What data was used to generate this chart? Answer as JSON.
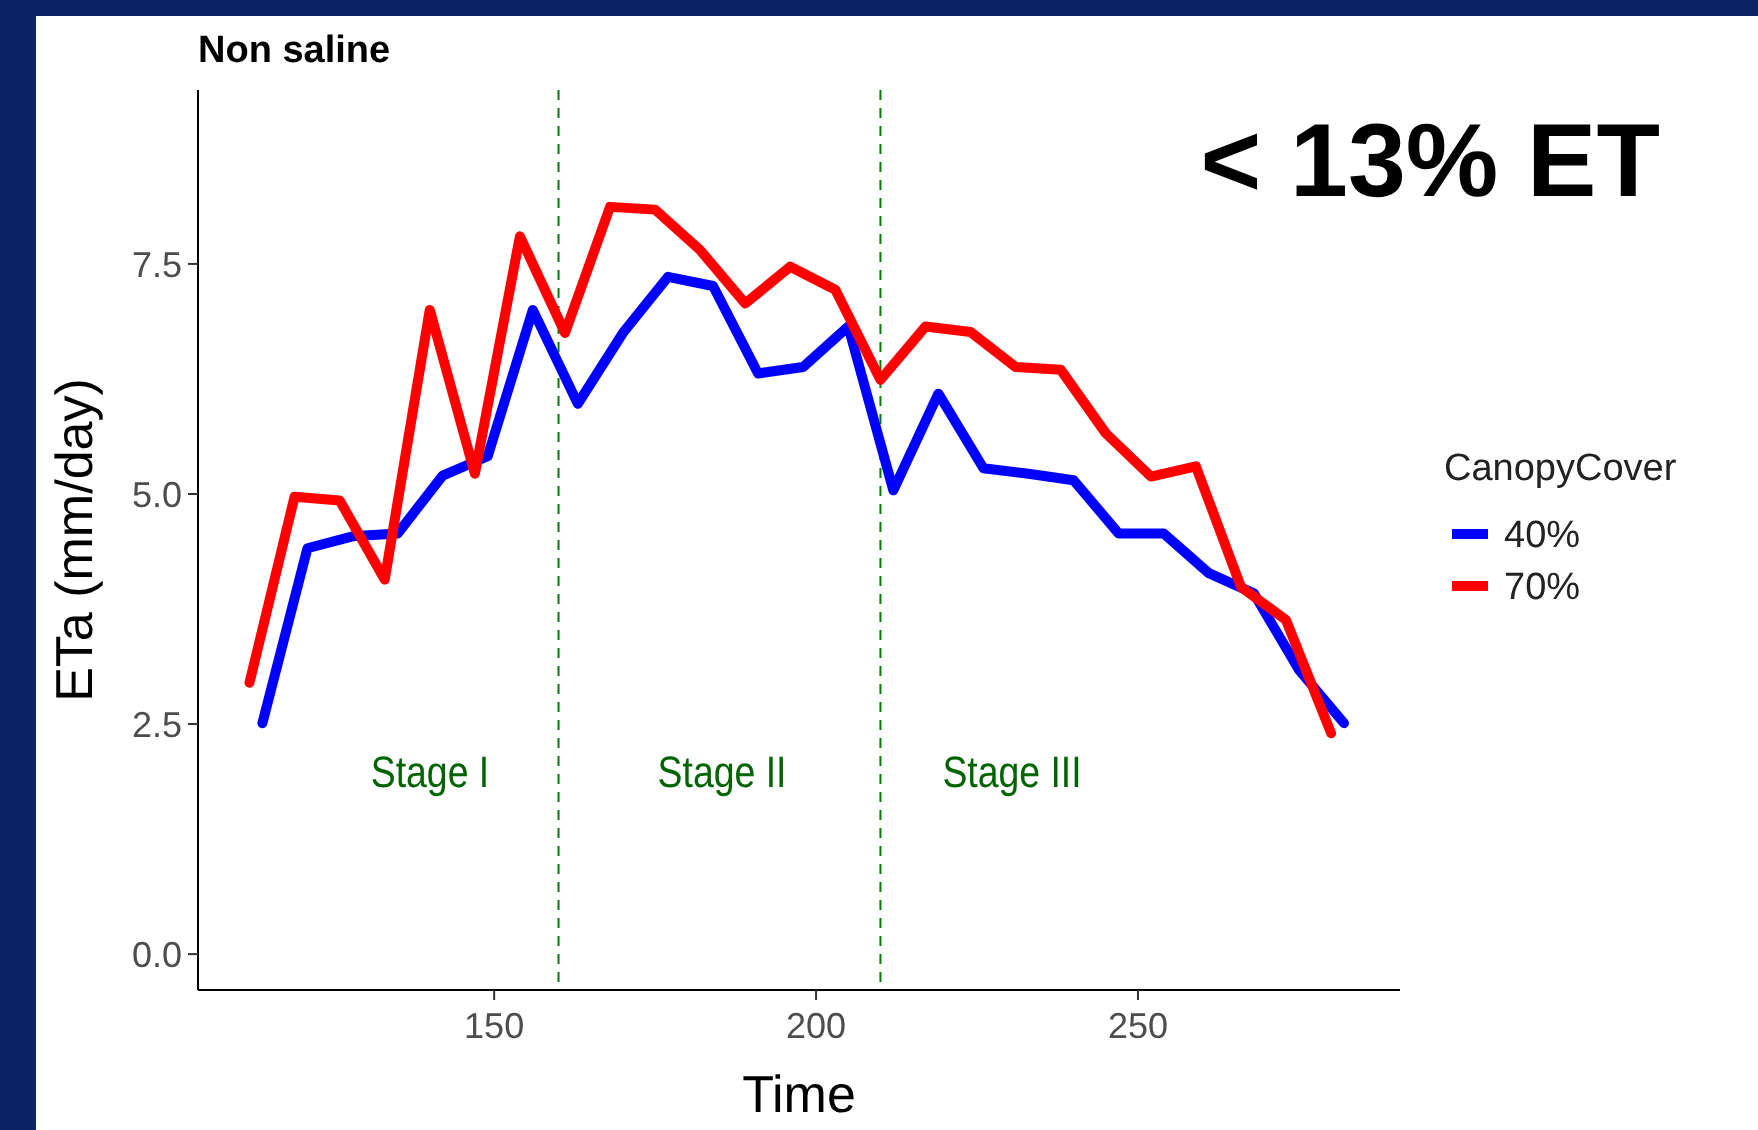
{
  "chart_data": {
    "type": "line",
    "title": "Non saline",
    "xlabel": "Time",
    "ylabel": "ETa (mm/day)",
    "legend_title": "CanopyCover",
    "legend": "right",
    "grid": false,
    "line_style": "solid",
    "marker": "none",
    "xlim": [
      104,
      290.7
    ],
    "xticks": [
      150,
      200,
      250
    ],
    "ylim": [
      -0.39,
      9.39
    ],
    "yticks": [
      {
        "value": 0,
        "label": "0.0"
      },
      {
        "value": 2.5,
        "label": "2.5"
      },
      {
        "value": 5,
        "label": "5.0"
      },
      {
        "value": 7.5,
        "label": "7.5"
      }
    ],
    "series": [
      {
        "name": "40%",
        "color": "#0000ff",
        "x": [
          114,
          121,
          128,
          135,
          142,
          149,
          156,
          163,
          170,
          177,
          184,
          191,
          198,
          205,
          212,
          219,
          226,
          233,
          240,
          247,
          254,
          261,
          268,
          275,
          282
        ],
        "values": [
          2.51,
          4.41,
          4.54,
          4.57,
          5.2,
          5.41,
          7.0,
          5.98,
          6.75,
          7.36,
          7.26,
          6.31,
          6.38,
          6.82,
          5.04,
          6.09,
          5.28,
          5.22,
          5.15,
          4.57,
          4.57,
          4.14,
          3.92,
          3.09,
          2.51
        ]
      },
      {
        "name": "70%",
        "color": "#ff0000",
        "x": [
          112,
          119,
          126,
          133,
          140,
          147,
          154,
          161,
          168,
          175,
          182,
          189,
          196,
          203,
          210,
          217,
          224,
          231,
          238,
          245,
          252,
          259,
          266,
          273,
          280
        ],
        "values": [
          2.95,
          4.97,
          4.93,
          4.07,
          7.0,
          5.22,
          7.8,
          6.75,
          8.12,
          8.09,
          7.65,
          7.07,
          7.47,
          7.22,
          6.24,
          6.82,
          6.76,
          6.38,
          6.35,
          5.66,
          5.19,
          5.3,
          3.99,
          3.63,
          2.4
        ]
      }
    ],
    "ref_lines": [
      {
        "axis": "x",
        "value": 160,
        "color": "#008000",
        "line_style": "dashed"
      },
      {
        "axis": "x",
        "value": 210,
        "color": "#008000",
        "line_style": "dashed"
      }
    ],
    "annotations": [
      "Stage I",
      "Stage II",
      "Stage III",
      "< 13% ET"
    ]
  }
}
